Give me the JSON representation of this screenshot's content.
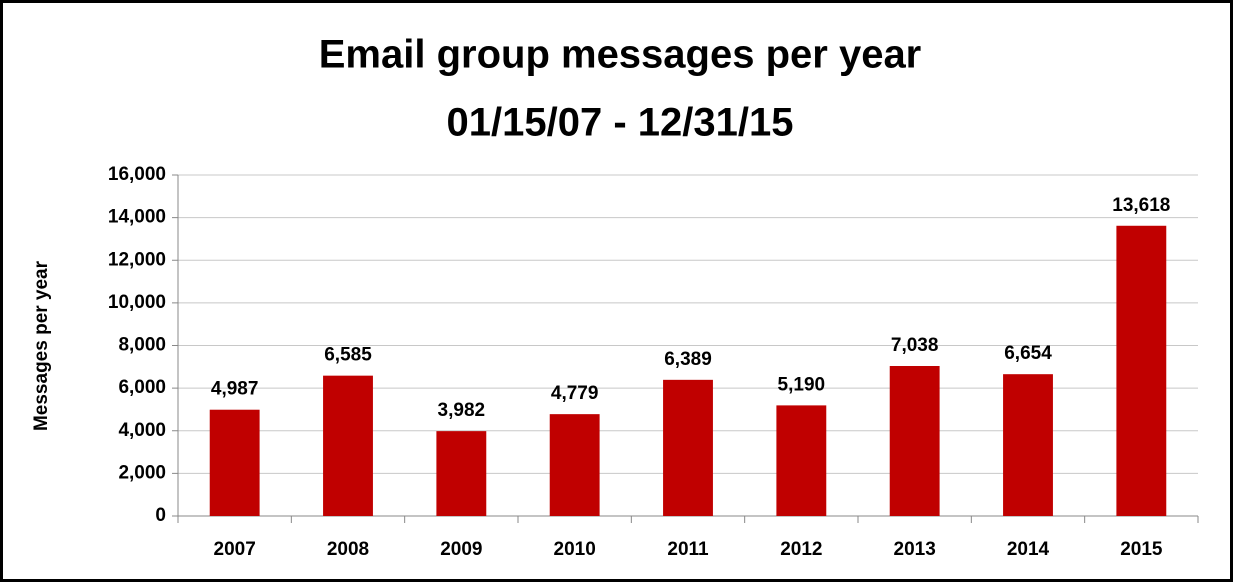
{
  "chart_data": {
    "type": "bar",
    "title": "Email group messages per year",
    "subtitle": "01/15/07 - 12/31/15",
    "y_label": "Messages per year",
    "categories": [
      "2007",
      "2008",
      "2009",
      "2010",
      "2011",
      "2012",
      "2013",
      "2014",
      "2015"
    ],
    "values": [
      4987,
      6585,
      3982,
      4779,
      6389,
      5190,
      7038,
      6654,
      13618
    ],
    "value_labels": [
      "4,987",
      "6,585",
      "3,982",
      "4,779",
      "6,389",
      "5,190",
      "7,038",
      "6,654",
      "13,618"
    ],
    "color": "#c00000",
    "ylim": [
      0,
      16000
    ],
    "yticks": [
      0,
      {
        "value": 2000,
        "label": "2,000"
      },
      {
        "value": 4000,
        "label": "4,000"
      },
      {
        "value": 6000,
        "label": "6,000"
      },
      {
        "value": 8000,
        "label": "8,000"
      },
      {
        "value": 10000,
        "label": "10,000"
      },
      {
        "value": 12000,
        "label": "12,000"
      },
      {
        "value": 14000,
        "label": "14,000"
      },
      {
        "value": 16000,
        "label": "16,000"
      }
    ],
    "grid": true
  }
}
